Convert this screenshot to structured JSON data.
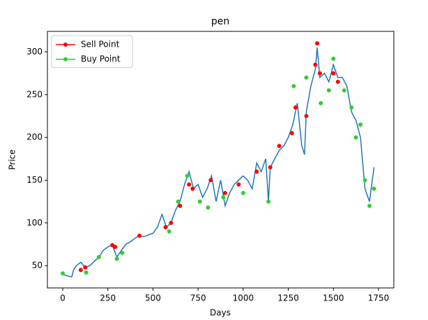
{
  "chart_data": {
    "type": "line",
    "title": "pen",
    "x_label": "Days",
    "y_label": "Price",
    "xlim": [
      -85,
      1835
    ],
    "ylim": [
      24,
      324
    ],
    "xticks": [
      0,
      250,
      500,
      750,
      1000,
      1250,
      1500,
      1750
    ],
    "yticks": [
      50,
      100,
      150,
      200,
      250,
      300
    ],
    "legend_loc": "upper left",
    "line": {
      "color": "#1f77b4",
      "x": [
        0,
        25,
        50,
        60,
        75,
        100,
        125,
        150,
        175,
        200,
        225,
        250,
        275,
        300,
        325,
        350,
        375,
        400,
        425,
        450,
        475,
        500,
        525,
        550,
        575,
        600,
        625,
        650,
        675,
        700,
        725,
        750,
        775,
        800,
        825,
        850,
        875,
        900,
        925,
        950,
        975,
        1000,
        1025,
        1050,
        1075,
        1100,
        1125,
        1140,
        1150,
        1175,
        1200,
        1225,
        1250,
        1275,
        1300,
        1325,
        1340,
        1350,
        1375,
        1400,
        1410,
        1425,
        1450,
        1475,
        1500,
        1525,
        1550,
        1575,
        1600,
        1625,
        1650,
        1675,
        1700,
        1725
      ],
      "values": [
        40,
        38,
        37,
        45,
        50,
        54,
        48,
        50,
        55,
        60,
        68,
        72,
        74,
        60,
        68,
        75,
        78,
        82,
        85,
        84,
        86,
        88,
        95,
        110,
        95,
        100,
        115,
        125,
        145,
        160,
        140,
        145,
        130,
        140,
        155,
        125,
        150,
        120,
        135,
        145,
        150,
        155,
        150,
        140,
        170,
        160,
        175,
        125,
        165,
        175,
        185,
        190,
        200,
        215,
        240,
        190,
        180,
        230,
        260,
        280,
        305,
        270,
        275,
        265,
        285,
        270,
        270,
        260,
        230,
        220,
        200,
        140,
        125,
        165
      ]
    },
    "series": [
      {
        "name": "Sell Point",
        "color": "#ff0000",
        "x": [
          100,
          125,
          275,
          290,
          425,
          570,
          600,
          650,
          700,
          720,
          820,
          900,
          975,
          1075,
          1150,
          1200,
          1270,
          1290,
          1350,
          1400,
          1410,
          1425,
          1500,
          1525
        ],
        "values": [
          45,
          48,
          74,
          72,
          85,
          95,
          100,
          120,
          145,
          140,
          150,
          135,
          145,
          160,
          165,
          190,
          205,
          235,
          225,
          285,
          310,
          275,
          275,
          265
        ]
      },
      {
        "name": "Buy Point",
        "color": "#32cd32",
        "x": [
          0,
          130,
          200,
          300,
          330,
          590,
          640,
          690,
          760,
          805,
          890,
          1000,
          1140,
          1280,
          1350,
          1430,
          1475,
          1500,
          1560,
          1600,
          1625,
          1650,
          1675,
          1700,
          1725
        ],
        "values": [
          41,
          42,
          60,
          58,
          65,
          90,
          125,
          155,
          125,
          118,
          130,
          135,
          125,
          260,
          270,
          240,
          255,
          292,
          255,
          235,
          200,
          215,
          150,
          120,
          140
        ]
      }
    ]
  }
}
